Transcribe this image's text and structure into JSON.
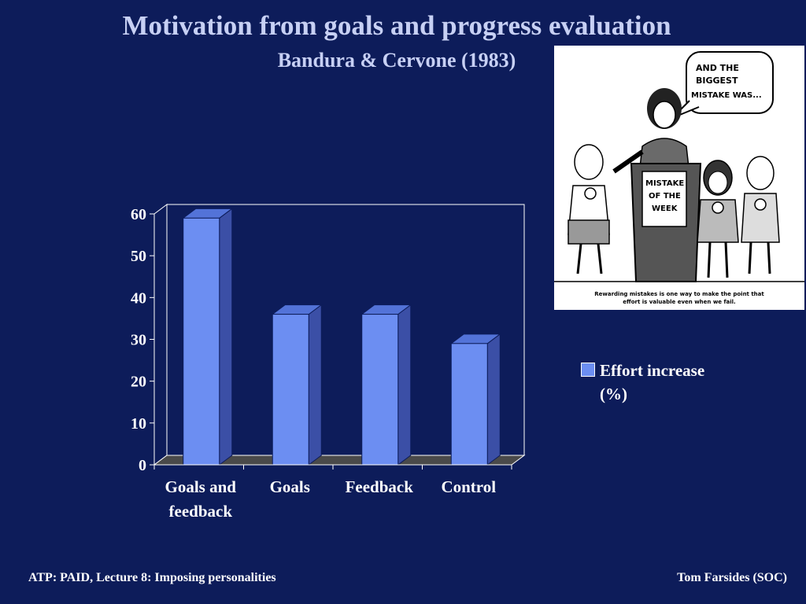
{
  "slide": {
    "title": "Motivation from goals and progress evaluation",
    "subtitle": "Bandura & Cervone (1983)",
    "footer_left": "ATP: PAID, Lecture 8: Imposing personalities",
    "footer_right": "Tom Farsides (SOC)"
  },
  "cartoon": {
    "speech": [
      "AND THE",
      "BIGGEST",
      "MISTAKE WAS..."
    ],
    "podium": [
      "MISTAKE",
      "OF THE",
      "WEEK"
    ],
    "caption": [
      "Rewarding mistakes is one way to make the point that",
      "effort is valuable even when we fail."
    ]
  },
  "chart_data": {
    "type": "bar",
    "categories": [
      "Goals and feedback",
      "Goals",
      "Feedback",
      "Control"
    ],
    "category_lines": [
      [
        "Goals and",
        "feedback"
      ],
      [
        "Goals"
      ],
      [
        "Feedback"
      ],
      [
        "Control"
      ]
    ],
    "series": [
      {
        "name": "Effort increase (%)",
        "values": [
          59,
          36,
          36,
          29
        ],
        "color": "#6c8ef2"
      }
    ],
    "ylim": [
      0,
      60
    ],
    "yticks": [
      0,
      10,
      20,
      30,
      40,
      50,
      60
    ],
    "grid": false,
    "legend": "right",
    "title": "",
    "xlabel": "",
    "ylabel": ""
  }
}
